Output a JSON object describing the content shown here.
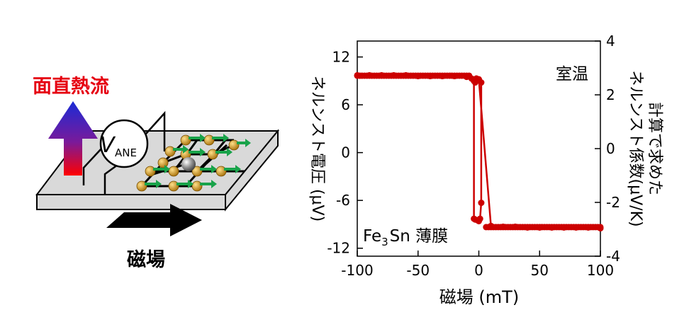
{
  "diagram": {
    "heat_flow_label": "面直熱流",
    "voltage_label_main": "V",
    "voltage_label_sub": "ANE",
    "magnetic_field_label": "磁場",
    "colors": {
      "heat_label": "#e60012",
      "arrow_top": "#1a2bd6",
      "arrow_bottom": "#ff0000",
      "atom": "#c8900c",
      "spin_arrow": "#19a34a",
      "center_atom": "#909090",
      "slab": "#d9d9d9"
    }
  },
  "chart_data": {
    "type": "line",
    "xlabel": "磁場 (mT)",
    "ylabel": "ネルンスト電圧 (μV)",
    "y2label": "計算で求めた\nネルンスト係数(μV/K)",
    "xlim": [
      -100,
      100
    ],
    "ylim": [
      -13,
      14
    ],
    "y2lim": [
      -4,
      4
    ],
    "x_ticks": [
      "-100",
      "-50",
      "0",
      "50",
      "100"
    ],
    "y_ticks": [
      "12",
      "6",
      "0",
      "-6",
      "-12"
    ],
    "y2_ticks": [
      "4",
      "2",
      "0",
      "-2",
      "-4"
    ],
    "annotation_temp": "室温",
    "annotation_sample_prefix": "Fe",
    "annotation_sample_sub": "3",
    "annotation_sample_suffix": "Sn 薄膜",
    "color": "#cc0000",
    "series": [
      {
        "values_x": [
          -100,
          -90,
          -80,
          -70,
          -60,
          -50,
          -40,
          -30,
          -20,
          -10,
          -6,
          -4,
          -3,
          2,
          2,
          1,
          0,
          -1,
          -3,
          -4,
          -4,
          -2,
          0,
          10,
          20,
          30,
          40,
          50,
          60,
          70,
          80,
          90,
          100
        ],
        "values_y": [
          9.7,
          9.7,
          9.7,
          9.7,
          9.7,
          9.6,
          9.6,
          9.6,
          9.6,
          9.5,
          9.3,
          9.0,
          8.8,
          8.8,
          -6.3,
          -8.3,
          -8.6,
          -8.5,
          -8.4,
          -8.3,
          9.0,
          9.3,
          9.2,
          -9.2,
          -9.3,
          -9.3,
          -9.4,
          -9.4,
          -9.4,
          -9.4,
          -9.4,
          -9.4,
          -9.5
        ]
      }
    ]
  }
}
